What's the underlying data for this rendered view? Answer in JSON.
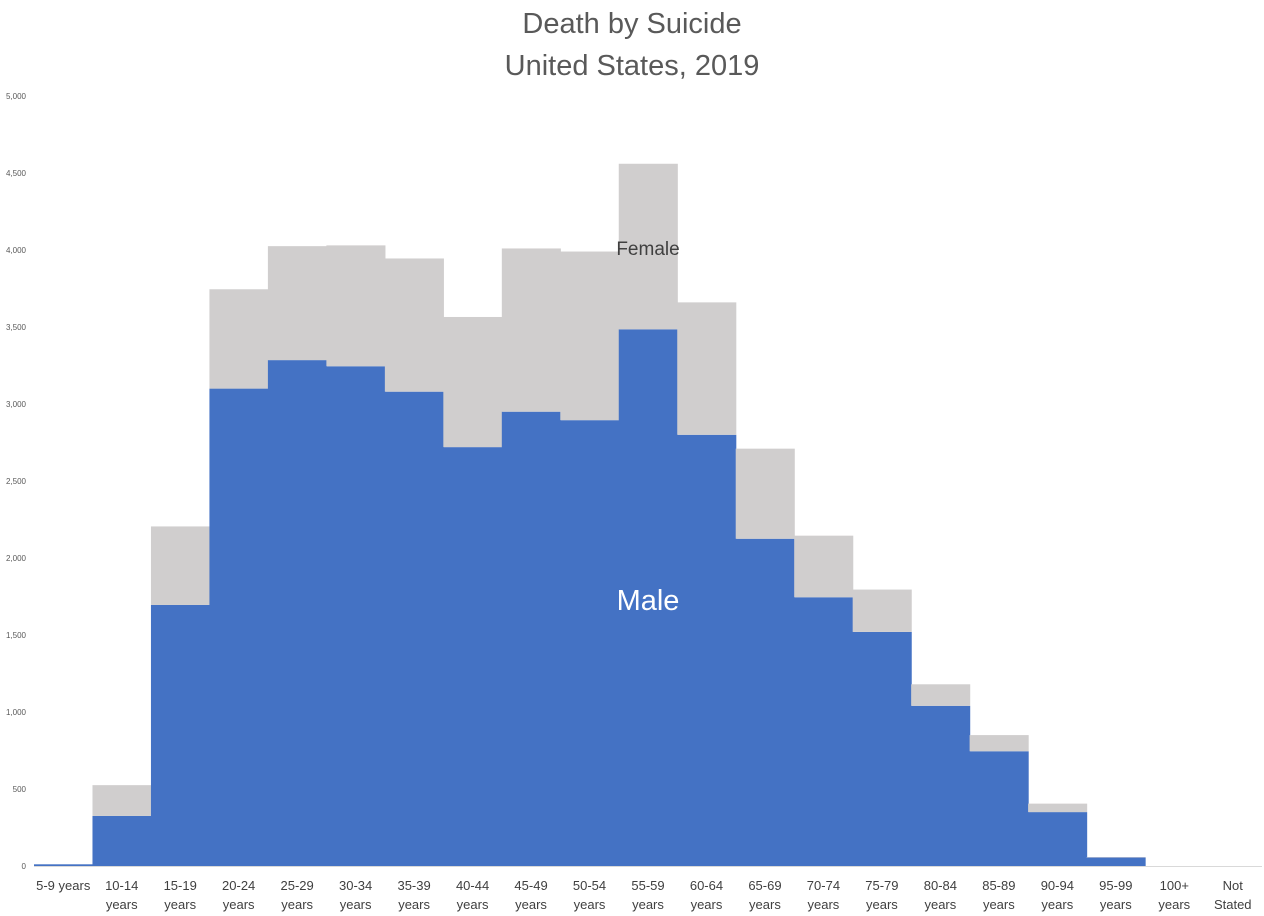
{
  "chart_data": {
    "type": "bar",
    "stacked": true,
    "title": "Death by Suicide",
    "subtitle": "United States, 2019",
    "categories": [
      [
        "5-9 years"
      ],
      [
        "10-14",
        "years"
      ],
      [
        "15-19",
        "years"
      ],
      [
        "20-24",
        "years"
      ],
      [
        "25-29",
        "years"
      ],
      [
        "30-34",
        "years"
      ],
      [
        "35-39",
        "years"
      ],
      [
        "40-44",
        "years"
      ],
      [
        "45-49",
        "years"
      ],
      [
        "50-54",
        "years"
      ],
      [
        "55-59",
        "years"
      ],
      [
        "60-64",
        "years"
      ],
      [
        "65-69",
        "years"
      ],
      [
        "70-74",
        "years"
      ],
      [
        "75-79",
        "years"
      ],
      [
        "80-84",
        "years"
      ],
      [
        "85-89",
        "years"
      ],
      [
        "90-94",
        "years"
      ],
      [
        "95-99",
        "years"
      ],
      [
        "100+",
        "years"
      ],
      [
        "Not",
        "Stated"
      ]
    ],
    "series": [
      {
        "name": "Male",
        "color": "#4472c4",
        "values": [
          11,
          325,
          1695,
          3100,
          3285,
          3245,
          3080,
          2720,
          2950,
          2895,
          3485,
          2800,
          2125,
          1745,
          1520,
          1040,
          745,
          350,
          55,
          0,
          0
        ]
      },
      {
        "name": "Female",
        "color": "#d0cece",
        "values": [
          0,
          200,
          510,
          645,
          740,
          785,
          865,
          845,
          1060,
          1095,
          1075,
          860,
          585,
          400,
          275,
          140,
          105,
          55,
          3,
          0,
          0
        ]
      }
    ],
    "yticks": [
      0,
      500,
      1000,
      1500,
      2000,
      2500,
      3000,
      3500,
      4000,
      4500,
      5000
    ],
    "ytick_labels": [
      "0",
      "500",
      "1,000",
      "1,500",
      "2,000",
      "2,500",
      "3,000",
      "3,500",
      "4,000",
      "4,500",
      "5,000"
    ],
    "ylim": [
      0,
      5000
    ],
    "grid": false,
    "legend": "none"
  }
}
